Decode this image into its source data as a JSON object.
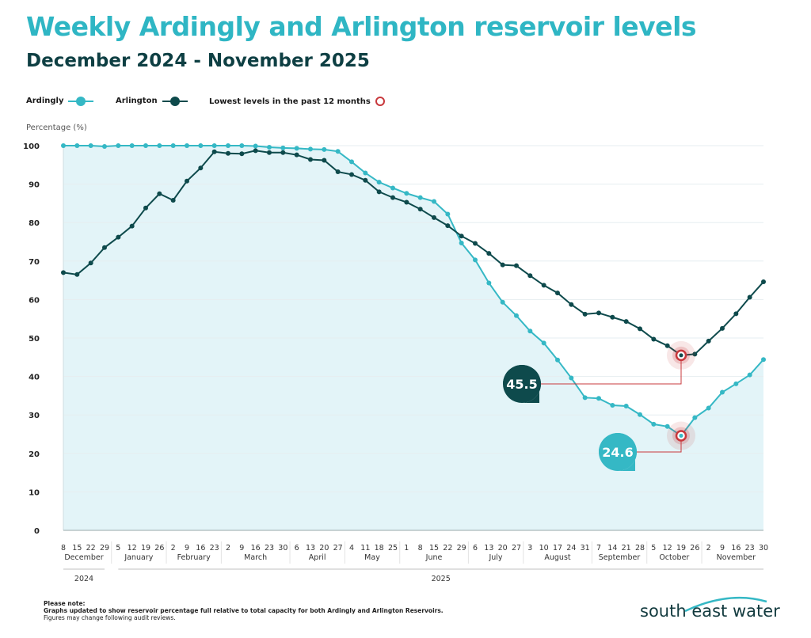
{
  "header": {
    "title": "Weekly Ardingly and Arlington reservoir levels",
    "subtitle": "December 2024 - November 2025"
  },
  "legend": {
    "ardingly": "Ardingly",
    "arlington": "Arlington",
    "lowest": "Lowest levels in the past 12 months"
  },
  "colors": {
    "ardingly": "#35b8c5",
    "arlington": "#0e4a4c",
    "fill": "#e3f4f8",
    "lowest": "#c8383c"
  },
  "chart_data": {
    "type": "line",
    "ylabel": "Percentage (%)",
    "ylim": [
      0,
      100
    ],
    "yticks": [
      0,
      10,
      20,
      30,
      40,
      50,
      60,
      70,
      80,
      90,
      100
    ],
    "x": [
      "8",
      "15",
      "22",
      "29",
      "5",
      "12",
      "19",
      "26",
      "2",
      "9",
      "16",
      "23",
      "2",
      "9",
      "16",
      "23",
      "30",
      "6",
      "13",
      "20",
      "27",
      "4",
      "11",
      "18",
      "25",
      "1",
      "8",
      "15",
      "22",
      "29",
      "6",
      "13",
      "20",
      "27",
      "3",
      "10",
      "17",
      "24",
      "31",
      "7",
      "14",
      "21",
      "28",
      "5",
      "12",
      "19",
      "26",
      "2",
      "9",
      "16",
      "23",
      "30"
    ],
    "months": [
      {
        "label": "December",
        "count": 4
      },
      {
        "label": "January",
        "count": 4
      },
      {
        "label": "February",
        "count": 4
      },
      {
        "label": "March",
        "count": 5
      },
      {
        "label": "April",
        "count": 4
      },
      {
        "label": "May",
        "count": 4
      },
      {
        "label": "June",
        "count": 5
      },
      {
        "label": "July",
        "count": 4
      },
      {
        "label": "August",
        "count": 5
      },
      {
        "label": "September",
        "count": 4
      },
      {
        "label": "October",
        "count": 4
      },
      {
        "label": "November",
        "count": 5
      }
    ],
    "years": [
      {
        "label": "2024",
        "count": 4
      },
      {
        "label": "2025",
        "count": 48
      }
    ],
    "grid": true,
    "series": [
      {
        "name": "Ardingly",
        "values": [
          100,
          100,
          100,
          99.8,
          100,
          100,
          100,
          100,
          100,
          100,
          100,
          100,
          100,
          100,
          99.9,
          99.6,
          99.4,
          99.3,
          99.1,
          99,
          98.5,
          95.8,
          92.9,
          90.5,
          89,
          87.6,
          86.5,
          85.5,
          82.2,
          74.7,
          70.3,
          64.3,
          59.3,
          55.8,
          51.8,
          48.7,
          44.3,
          39.6,
          34.5,
          34.3,
          32.5,
          32.3,
          30.1,
          27.6,
          27,
          24.6,
          29.3,
          31.8,
          35.9,
          38.1,
          40.4,
          44.4
        ]
      },
      {
        "name": "Arlington",
        "values": [
          67,
          66.5,
          69.5,
          73.5,
          76.2,
          79.1,
          83.8,
          87.5,
          85.8,
          90.8,
          94.2,
          98.4,
          98,
          97.9,
          98.7,
          98.2,
          98.2,
          97.6,
          96.4,
          96.2,
          93.2,
          92.5,
          91,
          88,
          86.5,
          85.3,
          83.5,
          81.3,
          79.2,
          76.5,
          74.6,
          72,
          69,
          68.8,
          66.2,
          63.7,
          61.7,
          58.7,
          56.2,
          56.5,
          55.4,
          54.3,
          52.4,
          49.7,
          48,
          45.5,
          45.8,
          49.2,
          52.5,
          56.3,
          60.6,
          64.6
        ]
      }
    ],
    "annotations": [
      {
        "series": "Arlington",
        "date": "19 October 2025",
        "label": "45.5"
      },
      {
        "series": "Ardingly",
        "date": "19 October 2025",
        "label": "24.6"
      }
    ]
  },
  "footer": {
    "note_title": "Please note:",
    "note_line1": "Graphs updated to show reservoir percentage full relative to total capacity for both Ardingly and Arlington Reservoirs.",
    "note_line2": "Figures may change following audit reviews.",
    "logo": "south east water"
  }
}
